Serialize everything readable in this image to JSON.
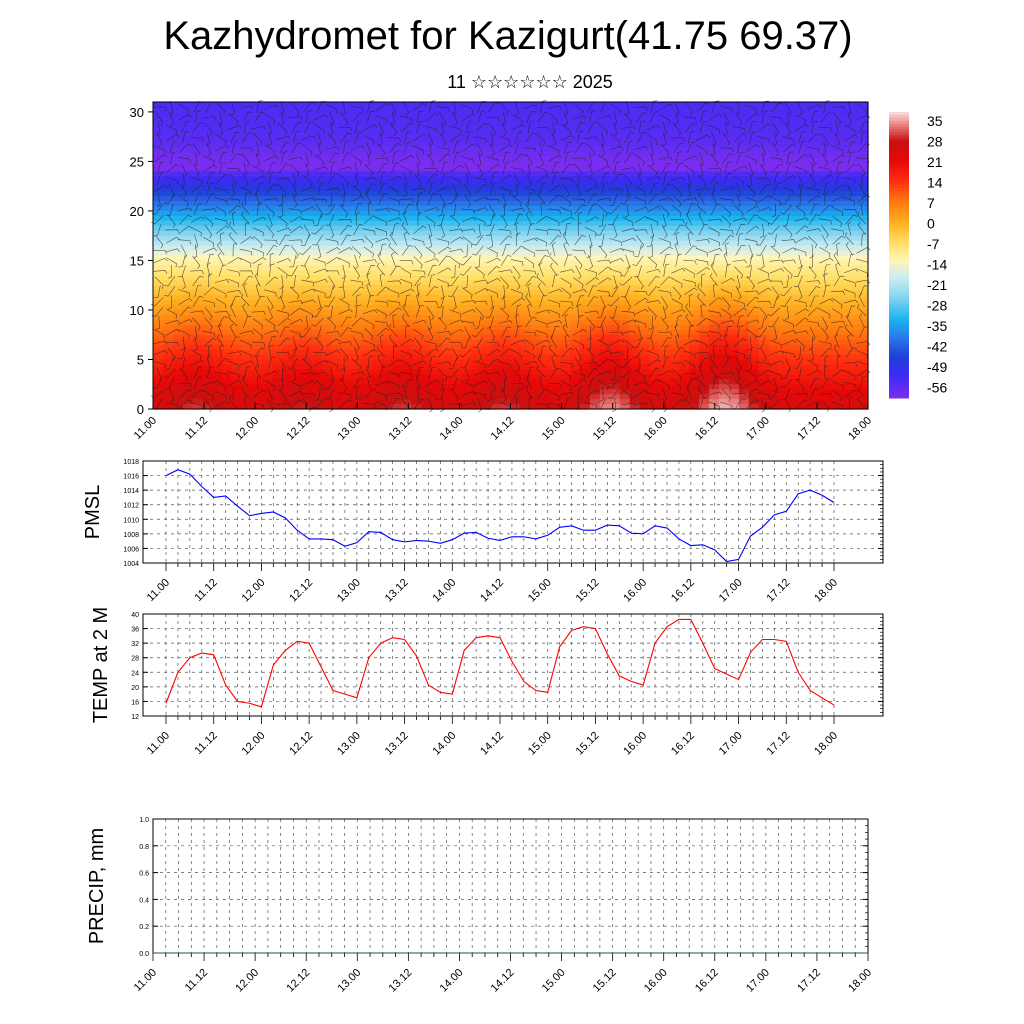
{
  "header": {
    "title": "Kazhydromet for Kazigurt(41.75 69.37)",
    "subtitle": "11 ☆☆☆☆☆☆ 2025"
  },
  "time_labels": [
    "11.00",
    "11.12",
    "12.00",
    "12.12",
    "13.00",
    "13.12",
    "14.00",
    "14.12",
    "15.00",
    "15.12",
    "16.00",
    "16.12",
    "17.00",
    "17.12",
    "18.00"
  ],
  "chart_data": [
    {
      "type": "heatmap",
      "title": "",
      "ylabel": "",
      "x": [
        "11.00",
        "11.12",
        "12.00",
        "12.12",
        "13.00",
        "13.12",
        "14.00",
        "14.12",
        "15.00",
        "15.12",
        "16.00",
        "16.12",
        "17.00",
        "17.12",
        "18.00"
      ],
      "yticks": [
        0,
        5,
        10,
        15,
        20,
        25,
        30
      ],
      "ylim": [
        0,
        31
      ],
      "colorbar": {
        "labels": [
          "35",
          "28",
          "21",
          "14",
          "7",
          "0",
          "-7",
          "-14",
          "-21",
          "-28",
          "-35",
          "-42",
          "-49",
          "-56"
        ],
        "range": [
          -60,
          38
        ]
      },
      "colormap": [
        {
          "v": -60,
          "c": "#7b2df0"
        },
        {
          "v": -52,
          "c": "#3b2cf5"
        },
        {
          "v": -46,
          "c": "#1f3fd8"
        },
        {
          "v": -40,
          "c": "#2a72e8"
        },
        {
          "v": -33,
          "c": "#1ab4f0"
        },
        {
          "v": -26,
          "c": "#7fd2ef"
        },
        {
          "v": -19,
          "c": "#c8ecf4"
        },
        {
          "v": -13,
          "c": "#fff5b8"
        },
        {
          "v": -7,
          "c": "#ffe066"
        },
        {
          "v": 0,
          "c": "#ffb020"
        },
        {
          "v": 7,
          "c": "#ff7a10"
        },
        {
          "v": 14,
          "c": "#ff3010"
        },
        {
          "v": 21,
          "c": "#e80808"
        },
        {
          "v": 28,
          "c": "#c81010"
        },
        {
          "v": 32,
          "c": "#e06060"
        },
        {
          "v": 38,
          "c": "#fbe0e0"
        }
      ],
      "notes": "Vertical profile of temperature with wind barbs; warm near surface (up to ~35), coldest around 25 (~-56)."
    },
    {
      "type": "line",
      "ylabel": "PMSL",
      "x": [
        0,
        3,
        6,
        9,
        12,
        15,
        18,
        21,
        24,
        27,
        30,
        33,
        36,
        39,
        42,
        45,
        48,
        51,
        54,
        57,
        60,
        63,
        66,
        69,
        72,
        75,
        78,
        81,
        84,
        87,
        90,
        93,
        96,
        99,
        102,
        105,
        108,
        111,
        114,
        117,
        120,
        123,
        126,
        129,
        132,
        135,
        138,
        141,
        144,
        147,
        150,
        153,
        156,
        159,
        162,
        165,
        168
      ],
      "xticks": [
        "11.00",
        "11.12",
        "12.00",
        "12.12",
        "13.00",
        "13.12",
        "14.00",
        "14.12",
        "15.00",
        "15.12",
        "16.00",
        "16.12",
        "17.00",
        "17.12",
        "18.00"
      ],
      "ylim": [
        1004,
        1018
      ],
      "yticks": [
        1004,
        1006,
        1008,
        1010,
        1012,
        1014,
        1016,
        1018
      ],
      "color": "#0000ff",
      "values": [
        1016.0,
        1016.8,
        1016.2,
        1014.5,
        1013.0,
        1013.2,
        1011.8,
        1010.5,
        1010.8,
        1011.0,
        1010.2,
        1008.5,
        1007.3,
        1007.3,
        1007.2,
        1006.3,
        1006.8,
        1008.3,
        1008.2,
        1007.2,
        1006.9,
        1007.1,
        1007.0,
        1006.7,
        1007.2,
        1008.1,
        1008.2,
        1007.4,
        1007.1,
        1007.6,
        1007.6,
        1007.3,
        1007.8,
        1008.9,
        1009.1,
        1008.5,
        1008.5,
        1009.2,
        1009.1,
        1008.1,
        1008.0,
        1009.1,
        1008.8,
        1007.3,
        1006.4,
        1006.5,
        1005.8,
        1004.2,
        1004.5,
        1007.7,
        1008.9,
        1010.6,
        1011.1,
        1013.5,
        1014.0,
        1013.3,
        1012.3
      ]
    },
    {
      "type": "line",
      "ylabel": "TEMP at 2 M",
      "x": [
        0,
        3,
        6,
        9,
        12,
        15,
        18,
        21,
        24,
        27,
        30,
        33,
        36,
        39,
        42,
        45,
        48,
        51,
        54,
        57,
        60,
        63,
        66,
        69,
        72,
        75,
        78,
        81,
        84,
        87,
        90,
        93,
        96,
        99,
        102,
        105,
        108,
        111,
        114,
        117,
        120,
        123,
        126,
        129,
        132,
        135,
        138,
        141,
        144,
        147,
        150,
        153,
        156,
        159,
        162,
        165,
        168
      ],
      "xticks": [
        "11.00",
        "11.12",
        "12.00",
        "12.12",
        "13.00",
        "13.12",
        "14.00",
        "14.12",
        "15.00",
        "15.12",
        "16.00",
        "16.12",
        "17.00",
        "17.12",
        "18.00"
      ],
      "ylim": [
        12,
        40
      ],
      "yticks": [
        12,
        16,
        20,
        24,
        28,
        32,
        36,
        40
      ],
      "color": "#ff0000",
      "values": [
        15.5,
        24.0,
        28.0,
        29.3,
        28.8,
        20.5,
        16.0,
        15.5,
        14.5,
        26.0,
        30.0,
        32.5,
        32.0,
        25.5,
        19.0,
        18.0,
        17.0,
        28.0,
        32.0,
        33.5,
        33.0,
        28.5,
        20.5,
        18.5,
        18.0,
        30.0,
        33.5,
        34.0,
        33.5,
        27.0,
        21.5,
        19.0,
        18.5,
        31.0,
        35.5,
        36.5,
        36.0,
        29.0,
        23.0,
        21.5,
        20.5,
        32.0,
        36.5,
        38.5,
        38.5,
        32.0,
        25.0,
        23.5,
        22.0,
        29.5,
        33.0,
        33.0,
        32.5,
        24.0,
        19.0,
        17.0,
        15.0
      ]
    },
    {
      "type": "line",
      "ylabel": "PRECIP, mm",
      "xticks": [
        "11.00",
        "11.12",
        "12.00",
        "12.12",
        "13.00",
        "13.12",
        "14.00",
        "14.12",
        "15.00",
        "15.12",
        "16.00",
        "16.12",
        "17.00",
        "17.12",
        "18.00"
      ],
      "ylim": [
        0,
        1.0
      ],
      "yticks": [
        "0.0",
        "0.2",
        "0.4",
        "0.6",
        "0.8",
        "1.0"
      ],
      "color": "#1a5a3a",
      "values": [
        0,
        0,
        0,
        0,
        0,
        0,
        0,
        0,
        0,
        0,
        0,
        0,
        0,
        0,
        0,
        0,
        0,
        0,
        0,
        0,
        0,
        0,
        0,
        0,
        0,
        0,
        0,
        0,
        0,
        0,
        0,
        0,
        0,
        0,
        0,
        0,
        0,
        0,
        0,
        0,
        0,
        0,
        0,
        0,
        0,
        0,
        0,
        0,
        0,
        0,
        0,
        0,
        0,
        0,
        0,
        0,
        0
      ]
    }
  ]
}
